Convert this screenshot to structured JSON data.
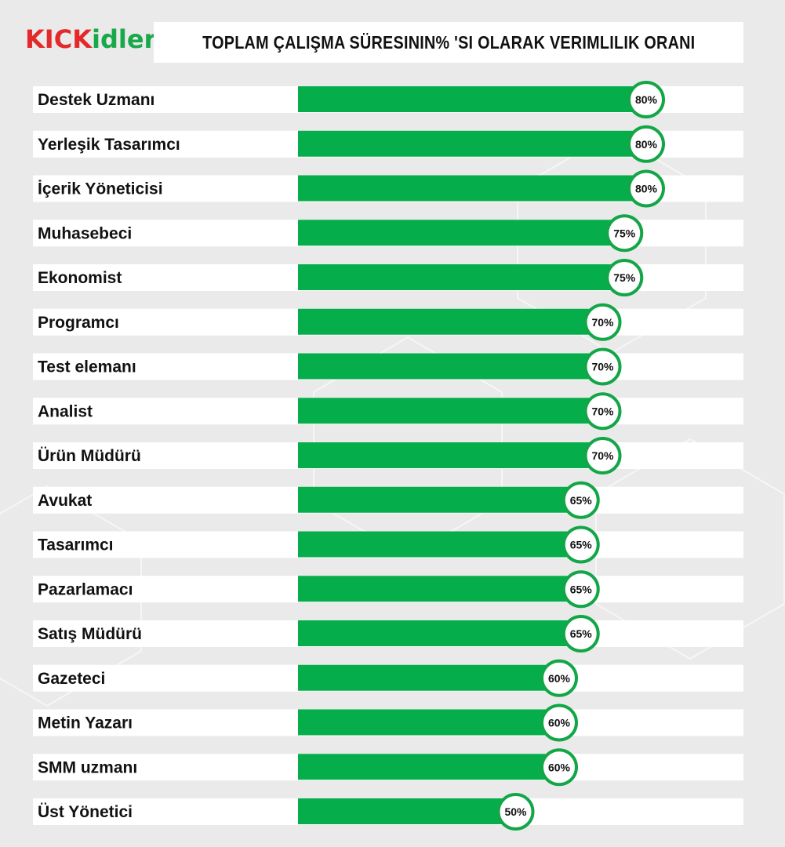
{
  "header": {
    "logo_part1": "KICK",
    "logo_part2": "idler",
    "title": "TOPLAM ÇALIŞMA SÜRESININ% 'SI OLARAK VERIMLILIK ORANI"
  },
  "colors": {
    "bar": "#06ae4b",
    "circle_stroke": "#13a647",
    "row_bg": "#ffffff",
    "page_bg": "#eaeaea"
  },
  "chart_data": {
    "type": "bar",
    "orientation": "horizontal",
    "title": "TOPLAM ÇALIŞMA SÜRESININ% 'SI OLARAK VERIMLILIK ORANI",
    "categories": [
      "Destek Uzmanı",
      "Yerleşik Tasarımcı",
      "İçerik Yöneticisi",
      "Muhasebeci",
      "Ekonomist",
      "Programcı",
      "Test elemanı",
      "Analist",
      "Ürün Müdürü",
      "Avukat",
      "Tasarımcı",
      "Pazarlamacı",
      "Satış Müdürü",
      "Gazeteci",
      "Metin Yazarı",
      "SMM uzmanı",
      "Üst Yönetici"
    ],
    "values": [
      80,
      80,
      80,
      75,
      75,
      70,
      70,
      70,
      70,
      65,
      65,
      65,
      65,
      60,
      60,
      60,
      50
    ],
    "value_labels": [
      "80%",
      "80%",
      "80%",
      "75%",
      "75%",
      "70%",
      "70%",
      "70%",
      "70%",
      "65%",
      "65%",
      "65%",
      "65%",
      "60%",
      "60%",
      "60%",
      "50%"
    ],
    "unit": "%",
    "xlim": [
      0,
      100
    ],
    "grid": false,
    "legend": "none"
  }
}
